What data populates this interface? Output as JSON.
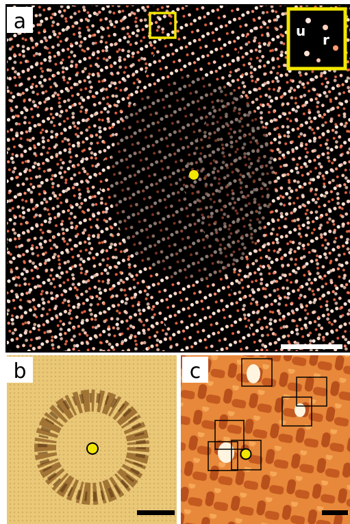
{
  "panels": [
    {
      "label": "a",
      "inset_labels": [
        "u",
        "r"
      ]
    },
    {
      "label": "b"
    },
    {
      "label": "c"
    }
  ]
}
